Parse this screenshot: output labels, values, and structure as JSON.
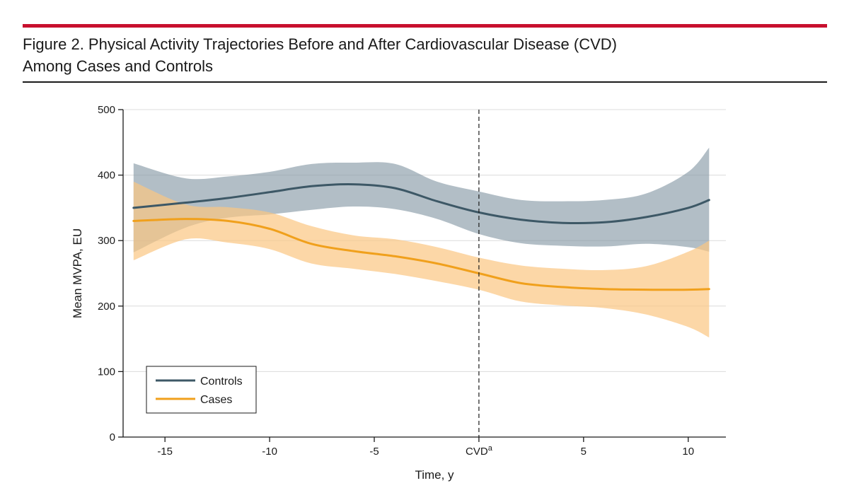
{
  "figure": {
    "title_line1": "Figure 2. Physical Activity Trajectories Before and After Cardiovascular Disease (CVD)",
    "title_line2": "Among Cases and Controls"
  },
  "colors": {
    "accent_rule": "#c8102e",
    "controls_line": "#3d5866",
    "controls_band": "#7f93a0",
    "cases_line": "#f0a01c",
    "cases_band": "#fbc681"
  },
  "chart_data": {
    "type": "line",
    "title": "Figure 2. Physical Activity Trajectories Before and After Cardiovascular Disease (CVD) Among Cases and Controls",
    "xlabel": "Time, y",
    "ylabel": "Mean MVPA, EU",
    "xlim": [
      -17,
      11.8
    ],
    "ylim": [
      0,
      500
    ],
    "xticks": [
      -15,
      -10,
      -5,
      0,
      5,
      10
    ],
    "xtick_labels": [
      "-15",
      "-10",
      "-5",
      "CVD",
      "5",
      "10"
    ],
    "xtick_superscripts": [
      "",
      "",
      "",
      "a",
      "",
      ""
    ],
    "yticks": [
      0,
      100,
      200,
      300,
      400,
      500
    ],
    "ytick_labels": [
      "0",
      "100",
      "200",
      "300",
      "400",
      "500"
    ],
    "grid": "horizontal",
    "reference_line_x": 0,
    "legend": {
      "placement": "bottom-left"
    },
    "series": [
      {
        "name": "Controls",
        "x": [
          -16.5,
          -14,
          -12,
          -10,
          -8,
          -6,
          -4,
          -2,
          0,
          2,
          4,
          6,
          8,
          10,
          11
        ],
        "values": [
          350,
          358,
          365,
          374,
          383,
          386,
          380,
          360,
          343,
          332,
          327,
          328,
          336,
          350,
          362
        ],
        "lower": [
          282,
          320,
          335,
          340,
          347,
          352,
          348,
          333,
          310,
          296,
          292,
          291,
          295,
          290,
          283
        ],
        "upper": [
          418,
          395,
          398,
          405,
          417,
          419,
          417,
          390,
          375,
          362,
          360,
          362,
          372,
          405,
          442
        ]
      },
      {
        "name": "Cases",
        "x": [
          -16.5,
          -14,
          -12,
          -10,
          -8,
          -6,
          -4,
          -2,
          0,
          2,
          4,
          6,
          8,
          10,
          11
        ],
        "values": [
          330,
          333,
          330,
          318,
          295,
          284,
          276,
          265,
          250,
          235,
          229,
          226,
          225,
          225,
          226
        ],
        "lower": [
          270,
          302,
          297,
          287,
          265,
          257,
          249,
          238,
          225,
          207,
          201,
          197,
          187,
          168,
          152
        ],
        "upper": [
          390,
          355,
          351,
          343,
          322,
          308,
          302,
          290,
          274,
          262,
          257,
          255,
          261,
          283,
          300
        ]
      }
    ]
  }
}
